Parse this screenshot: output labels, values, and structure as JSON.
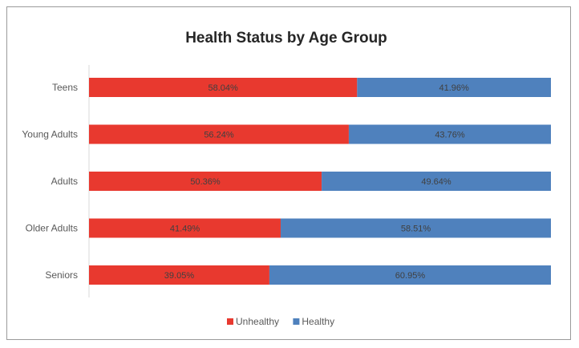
{
  "chart_data": {
    "type": "bar",
    "orientation": "horizontal",
    "stacked": true,
    "title": "Health Status by Age Group",
    "categories": [
      "Teens",
      "Young Adults",
      "Adults",
      "Older Adults",
      "Seniors"
    ],
    "series": [
      {
        "name": "Unhealthy",
        "color": "#e8392f",
        "values": [
          58.04,
          56.24,
          50.36,
          41.49,
          39.05
        ],
        "labels": [
          "58.04%",
          "56.24%",
          "50.36%",
          "41.49%",
          "39.05%"
        ]
      },
      {
        "name": "Healthy",
        "color": "#4f81bd",
        "values": [
          41.96,
          43.76,
          49.64,
          58.51,
          60.95
        ],
        "labels": [
          "41.96%",
          "43.76%",
          "49.64%",
          "58.51%",
          "60.95%"
        ]
      }
    ],
    "xlim": [
      0,
      100
    ],
    "grid": false,
    "legend_position": "bottom"
  }
}
